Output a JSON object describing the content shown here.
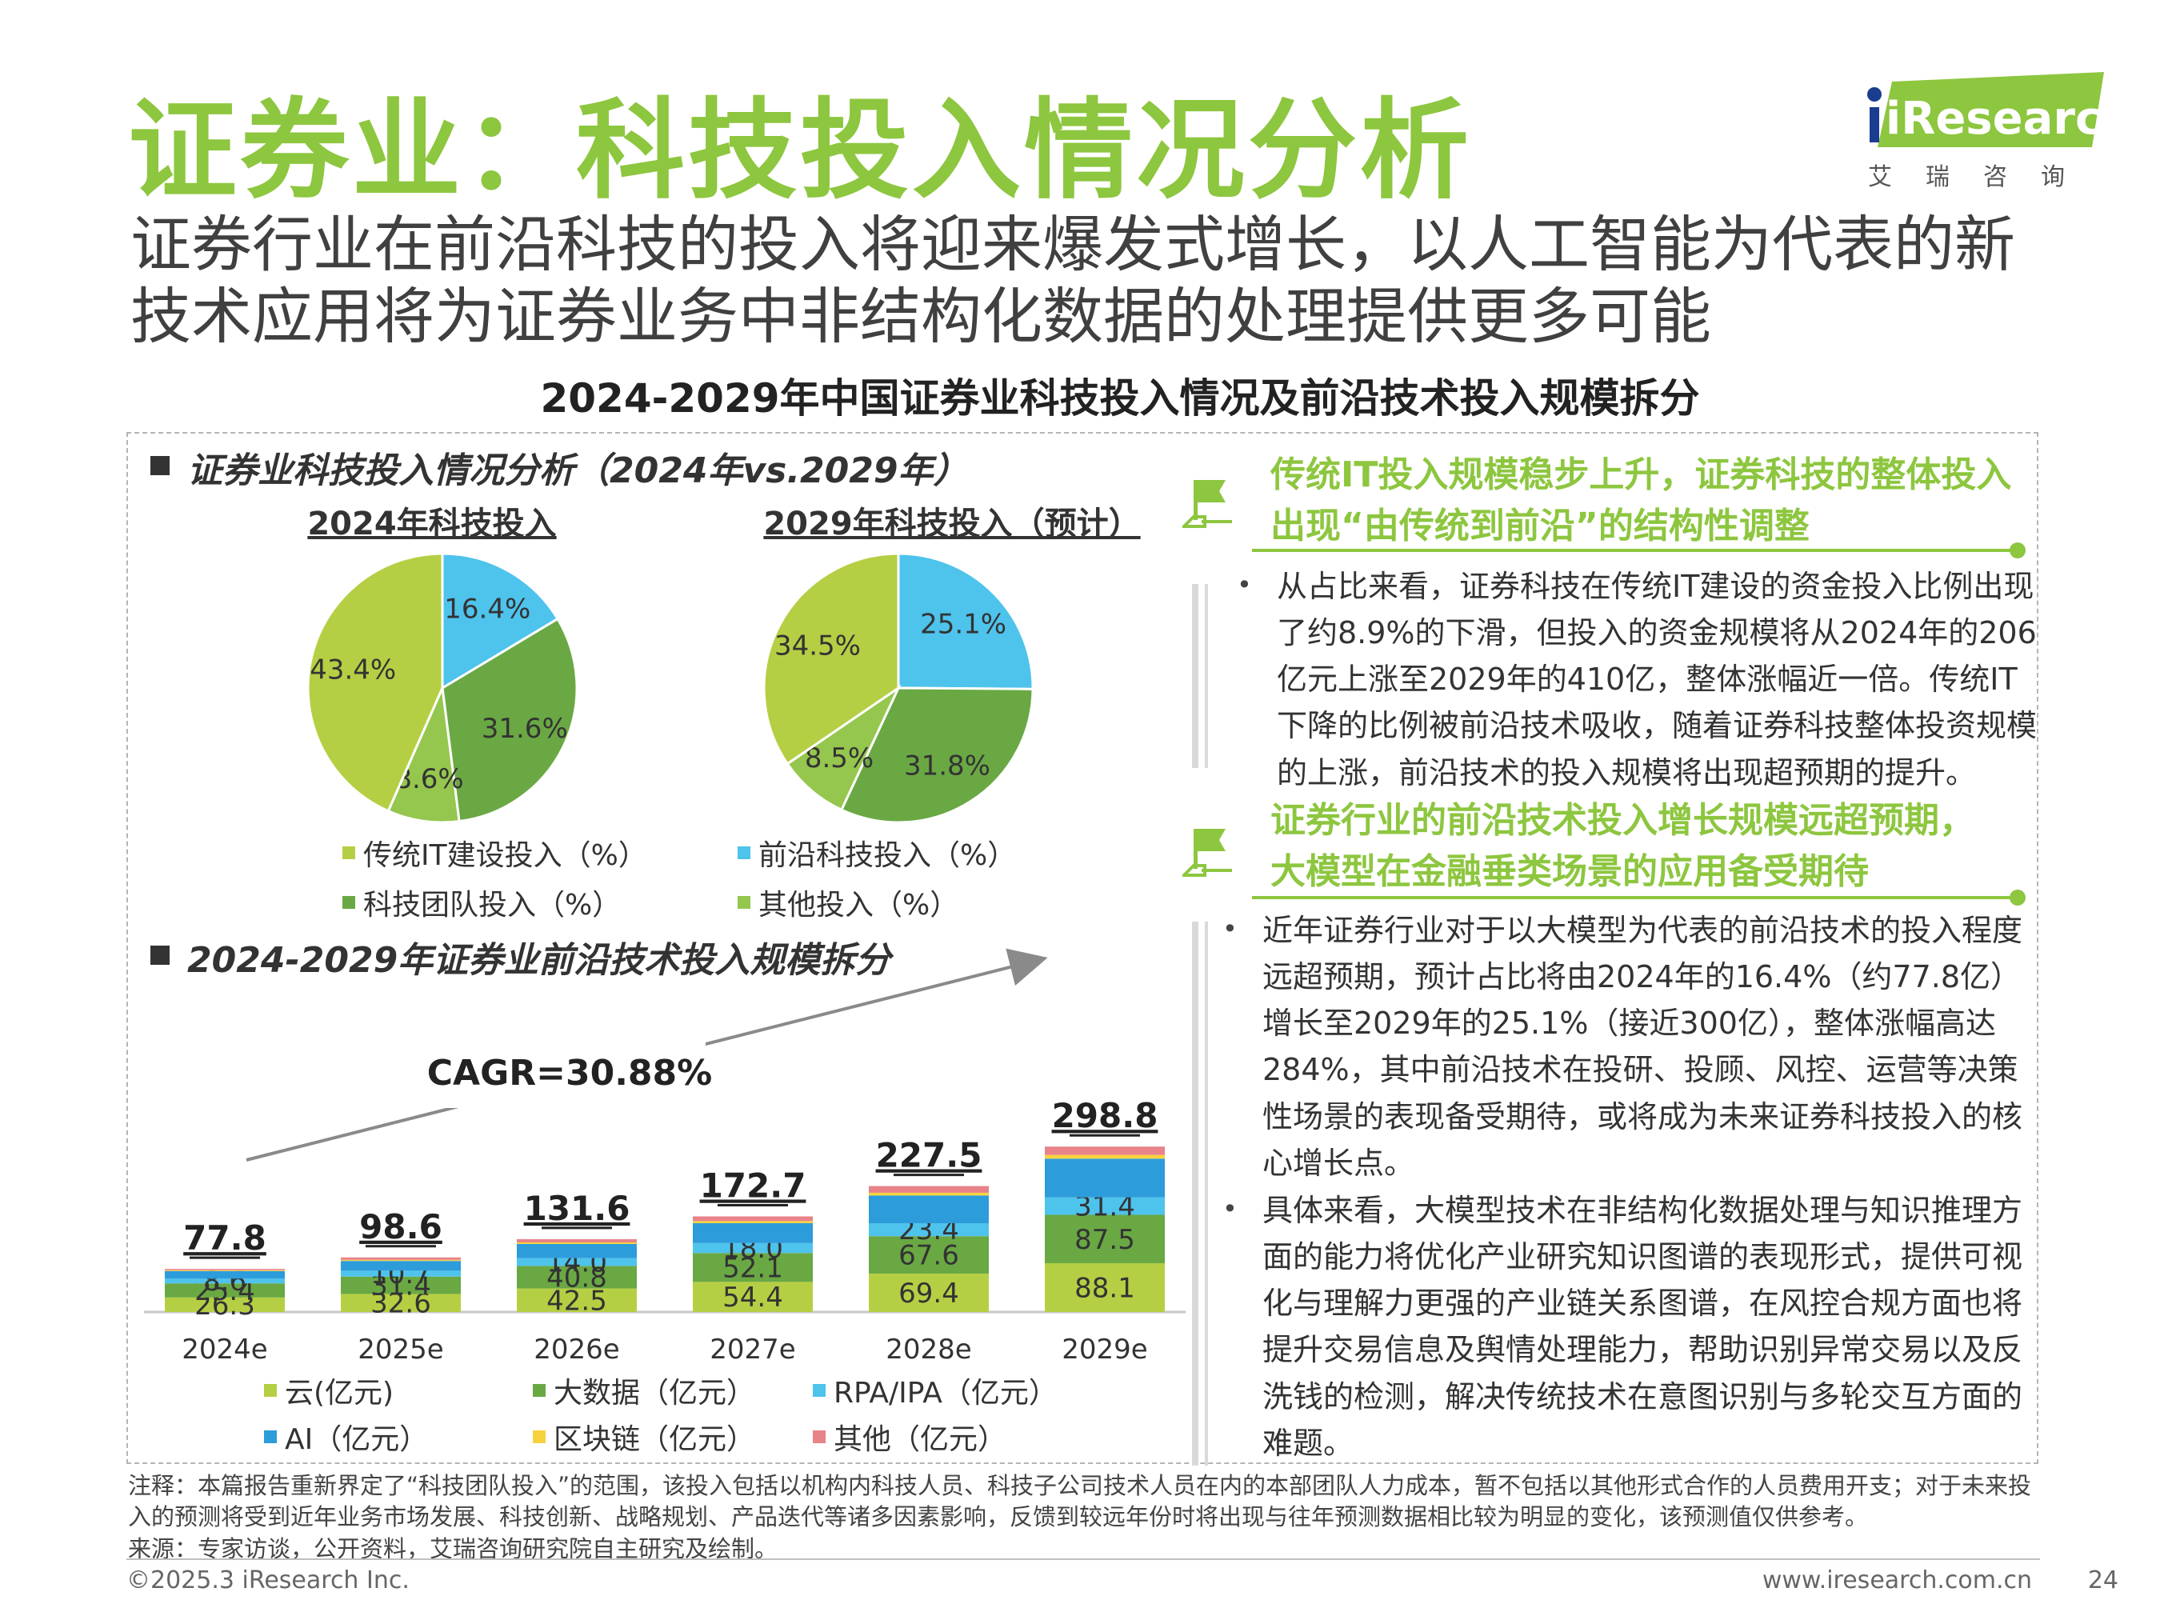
{
  "header": {
    "title": "证券业：科技投入情况分析",
    "subtitle_line1": "证券行业在前沿科技的投入将迎来爆发式增长，以人工智能为代表的新",
    "subtitle_line2": "技术应用将为证券业务中非结构化数据的处理提供更多可能",
    "logo_text": "iResearch",
    "logo_sub": "艾瑞咨询"
  },
  "chart_title": "2024-2029年中国证券业科技投入情况及前沿技术投入规模拆分",
  "pie_section": {
    "heading": "证券业科技投入情况分析（2024年vs.2029年）",
    "legend": [
      {
        "label": "传统IT建设投入（%）",
        "color": "#b5cf44"
      },
      {
        "label": "前沿科技投入（%）",
        "color": "#4ec3ec"
      },
      {
        "label": "科技团队投入（%）",
        "color": "#6aa844"
      },
      {
        "label": "其他投入（%）",
        "color": "#95c64e"
      }
    ]
  },
  "bar_section": {
    "heading": "2024-2029年证券业前沿技术投入规模拆分",
    "cagr": "CAGR=30.88%",
    "legend": [
      {
        "label": "云(亿元)",
        "color": "#b5cf44"
      },
      {
        "label": "大数据（亿元）",
        "color": "#6aa844"
      },
      {
        "label": "RPA/IPA（亿元）",
        "color": "#4ec3ec"
      },
      {
        "label": "AI（亿元）",
        "color": "#2d9cdb"
      },
      {
        "label": "区块链（亿元）",
        "color": "#f7d23e"
      },
      {
        "label": "其他（亿元）",
        "color": "#e8838a"
      }
    ]
  },
  "chart_data": [
    {
      "type": "pie",
      "title": "2024年科技投入",
      "labels": [
        "传统IT建设投入（%）",
        "前沿科技投入（%）",
        "科技团队投入（%）",
        "其他投入（%）"
      ],
      "values": [
        43.4,
        16.4,
        31.6,
        8.6
      ],
      "value_labels": [
        "43.4%",
        "16.4%",
        "31.6%",
        "8.6%"
      ],
      "colors": [
        "#b5cf44",
        "#4ec3ec",
        "#6aa844",
        "#95c64e"
      ]
    },
    {
      "type": "pie",
      "title": "2029年科技投入（预计）",
      "labels": [
        "传统IT建设投入（%）",
        "前沿科技投入（%）",
        "科技团队投入（%）",
        "其他投入（%）"
      ],
      "values": [
        34.5,
        25.1,
        31.8,
        8.5
      ],
      "value_labels": [
        "34.5%",
        "25.1%",
        "31.8%",
        "8.5%"
      ],
      "colors": [
        "#b5cf44",
        "#4ec3ec",
        "#6aa844",
        "#95c64e"
      ]
    },
    {
      "type": "bar",
      "stacked": true,
      "categories": [
        "2024e",
        "2025e",
        "2026e",
        "2027e",
        "2028e",
        "2029e"
      ],
      "totals": [
        77.8,
        98.6,
        131.6,
        172.7,
        227.5,
        298.8
      ],
      "total_labels": [
        "77.8",
        "98.6",
        "131.6",
        "172.7",
        "227.5",
        "298.8"
      ],
      "series": [
        {
          "name": "云(亿元)",
          "color": "#b5cf44",
          "values": [
            26.3,
            32.6,
            42.5,
            54.4,
            69.4,
            88.1
          ],
          "labels": [
            "26.3",
            "32.6",
            "42.5",
            "54.4",
            "69.4",
            "88.1"
          ]
        },
        {
          "name": "大数据（亿元）",
          "color": "#6aa844",
          "values": [
            25.4,
            31.4,
            40.8,
            52.1,
            67.6,
            87.5
          ],
          "labels": [
            "25.4",
            "31.4",
            "40.8",
            "52.1",
            "67.6",
            "87.5"
          ]
        },
        {
          "name": "RPA/IPA（亿元）",
          "color": "#4ec3ec",
          "values": [
            8.6,
            10.7,
            14.0,
            18.0,
            23.4,
            31.4
          ],
          "labels": [
            "8.6",
            "10.7",
            "14.0",
            "18.0",
            "23.4",
            "31.4"
          ]
        },
        {
          "name": "AI（亿元）",
          "color": "#2d9cdb",
          "values": [
            13.6,
            17.5,
            25.6,
            36.0,
            50.0,
            70.0
          ],
          "labels": []
        },
        {
          "name": "区块链（亿元）",
          "color": "#f7d23e",
          "values": [
            1.6,
            2.0,
            2.8,
            3.8,
            5.0,
            6.8
          ],
          "labels": []
        },
        {
          "name": "其他（亿元）",
          "color": "#e8838a",
          "values": [
            2.3,
            4.4,
            5.9,
            8.4,
            12.1,
            15.0
          ],
          "labels": []
        }
      ],
      "ylim": [
        0,
        300
      ]
    }
  ],
  "right_panel": {
    "heading1_line1": "传统IT投入规模稳步上升，证券科技的整体投入",
    "heading1_line2": "出现“由传统到前沿”的结构性调整",
    "para1": "从占比来看，证券科技在传统IT建设的资金投入比例出现了约8.9%的下滑，但投入的资金规模将从2024年的206亿元上涨至2029年的410亿，整体涨幅近一倍。传统IT下降的比例被前沿技术吸收，随着证券科技整体投资规模的上涨，前沿技术的投入规模将出现超预期的提升。",
    "heading2_line1": "证券行业的前沿技术投入增长规模远超预期，",
    "heading2_line2": "大模型在金融垂类场景的应用备受期待",
    "para2": "近年证券行业对于以大模型为代表的前沿技术的投入程度远超预期，预计占比将由2024年的16.4%（约77.8亿）增长至2029年的25.1%（接近300亿），整体涨幅高达284%，其中前沿技术在投研、投顾、风控、运营等决策性场景的表现备受期待，或将成为未来证券科技投入的核心增长点。",
    "para3": "具体来看，大模型技术在非结构化数据处理与知识推理方面的能力将优化产业研究知识图谱的表现形式，提供可视化与理解力更强的产业链关系图谱，在风控合规方面也将提升交易信息及舆情处理能力，帮助识别异常交易以及反洗钱的检测，解决传统技术在意图识别与多轮交互方面的难题。",
    "bullet": "•"
  },
  "note": "注释：本篇报告重新界定了“科技团队投入”的范围，该投入包括以机构内科技人员、科技子公司技术人员在内的本部团队人力成本，暂不包括以其他形式合作的人员费用开支；对于未来投入的预测将受到近年业务市场发展、科技创新、战略规划、产品迭代等诸多因素影响，反馈到较远年份时将出现与往年预测数据相比较为明显的变化，该预测值仅供参考。",
  "source": "来源：专家访谈，公开资料，艾瑞咨询研究院自主研究及绘制。",
  "footer": {
    "copyright": "©2025.3 iResearch Inc.",
    "url": "www.iresearch.com.cn",
    "page": "24"
  }
}
